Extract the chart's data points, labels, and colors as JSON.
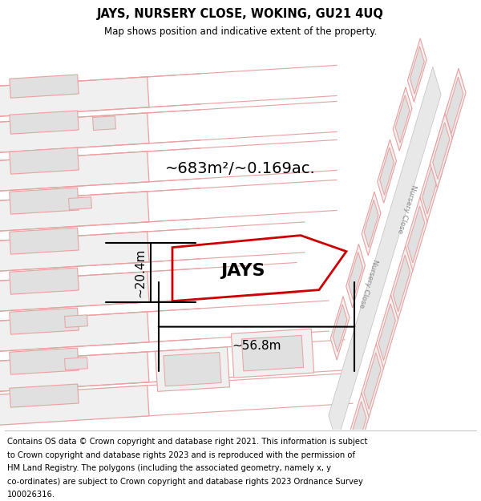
{
  "title": "JAYS, NURSERY CLOSE, WOKING, GU21 4UQ",
  "subtitle": "Map shows position and indicative extent of the property.",
  "area_label": "~683m²/~0.169ac.",
  "property_name": "JAYS",
  "dim_width": "~56.8m",
  "dim_height": "~20.4m",
  "road_label": "Nursery Close",
  "map_bg": "#ffffff",
  "plot_fill": "#f0f0f0",
  "plot_stroke": "#e8a0a0",
  "building_fill": "#e0e0e0",
  "building_stroke": "#e8a0a0",
  "road_fill": "#e8e8e8",
  "road_stroke": "#c8c8c8",
  "property_stroke": "#cc0000",
  "title_fontsize": 10.5,
  "subtitle_fontsize": 8.5,
  "copyright_fontsize": 7.2,
  "copyright_lines": [
    "Contains OS data © Crown copyright and database right 2021. This information is subject",
    "to Crown copyright and database rights 2023 and is reproduced with the permission of",
    "HM Land Registry. The polygons (including the associated geometry, namely x, y",
    "co-ordinates) are subject to Crown copyright and database rights 2023 Ordnance Survey",
    "100026316."
  ]
}
